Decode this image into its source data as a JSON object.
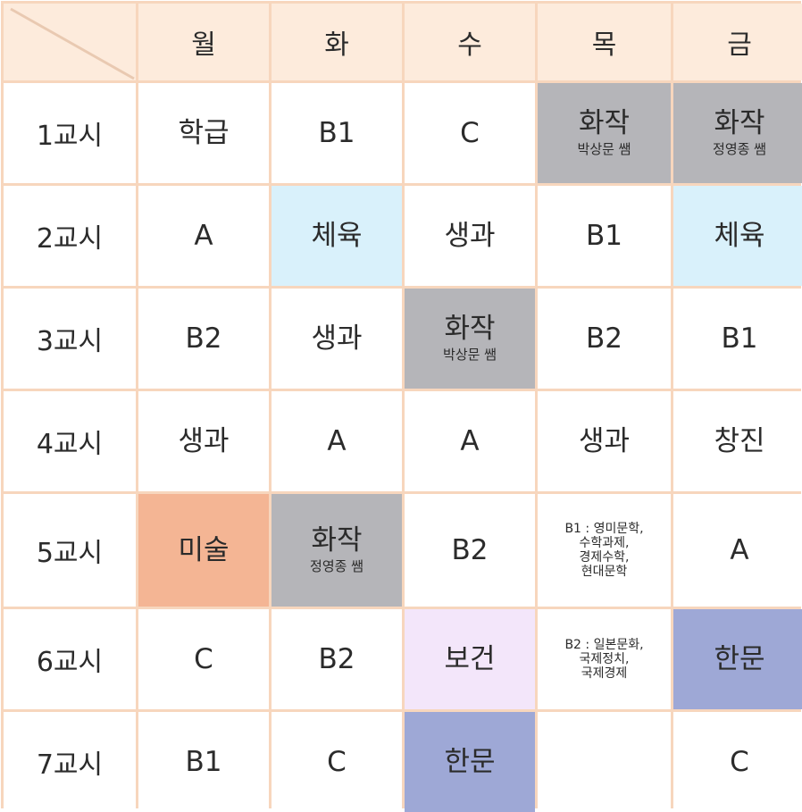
{
  "days": [
    "월",
    "화",
    "수",
    "목",
    "금"
  ],
  "rows": [
    {
      "label": "1교시",
      "cells": [
        {
          "subject": "학급",
          "teacher": "",
          "color": "#ffffff"
        },
        {
          "subject": "B1",
          "teacher": "",
          "color": "#ffffff"
        },
        {
          "subject": "C",
          "teacher": "",
          "color": "#ffffff"
        },
        {
          "subject": "화작",
          "teacher": "박상문 쌤",
          "color": "#b5b5b9"
        },
        {
          "subject": "화작",
          "teacher": "정영종 쌤",
          "color": "#b5b5b9"
        }
      ]
    },
    {
      "label": "2교시",
      "cells": [
        {
          "subject": "A",
          "teacher": "",
          "color": "#ffffff"
        },
        {
          "subject": "체육",
          "teacher": "",
          "color": "#d9f1fb"
        },
        {
          "subject": "생과",
          "teacher": "",
          "color": "#ffffff"
        },
        {
          "subject": "B1",
          "teacher": "",
          "color": "#ffffff"
        },
        {
          "subject": "체육",
          "teacher": "",
          "color": "#d9f1fb"
        }
      ]
    },
    {
      "label": "3교시",
      "cells": [
        {
          "subject": "B2",
          "teacher": "",
          "color": "#ffffff"
        },
        {
          "subject": "생과",
          "teacher": "",
          "color": "#ffffff"
        },
        {
          "subject": "화작",
          "teacher": "박상문 쌤",
          "color": "#b5b5b9"
        },
        {
          "subject": "B2",
          "teacher": "",
          "color": "#ffffff"
        },
        {
          "subject": "B1",
          "teacher": "",
          "color": "#ffffff"
        }
      ]
    },
    {
      "label": "4교시",
      "cells": [
        {
          "subject": "생과",
          "teacher": "",
          "color": "#ffffff"
        },
        {
          "subject": "A",
          "teacher": "",
          "color": "#ffffff"
        },
        {
          "subject": "A",
          "teacher": "",
          "color": "#ffffff"
        },
        {
          "subject": "생과",
          "teacher": "",
          "color": "#ffffff"
        },
        {
          "subject": "창진",
          "teacher": "",
          "color": "#ffffff"
        }
      ]
    },
    {
      "label": "5교시",
      "cells": [
        {
          "subject": "미술",
          "teacher": "",
          "color": "#f4b594"
        },
        {
          "subject": "화작",
          "teacher": "정영종 쌤",
          "color": "#b5b5b9"
        },
        {
          "subject": "B2",
          "teacher": "",
          "color": "#ffffff"
        },
        {
          "subject": "",
          "teacher": "",
          "color": "#ffffff",
          "lines": [
            "B1 : 영미문학,",
            "수학과제,",
            "경제수학,",
            "현대문학"
          ]
        },
        {
          "subject": "A",
          "teacher": "",
          "color": "#ffffff"
        }
      ]
    },
    {
      "label": "6교시",
      "cells": [
        {
          "subject": "C",
          "teacher": "",
          "color": "#ffffff"
        },
        {
          "subject": "B2",
          "teacher": "",
          "color": "#ffffff"
        },
        {
          "subject": "보건",
          "teacher": "",
          "color": "#f3e6fa"
        },
        {
          "subject": "",
          "teacher": "",
          "color": "#ffffff",
          "lines": [
            "B2 : 일본문화,",
            "국제정치,",
            "국제경제"
          ]
        },
        {
          "subject": "한문",
          "teacher": "",
          "color": "#9ea8d6"
        }
      ]
    },
    {
      "label": "7교시",
      "cells": [
        {
          "subject": "B1",
          "teacher": "",
          "color": "#ffffff"
        },
        {
          "subject": "C",
          "teacher": "",
          "color": "#ffffff"
        },
        {
          "subject": "한문",
          "teacher": "",
          "color": "#9ea8d6"
        },
        {
          "subject": "",
          "teacher": "",
          "color": "#ffffff"
        },
        {
          "subject": "C",
          "teacher": "",
          "color": "#ffffff"
        }
      ]
    }
  ]
}
